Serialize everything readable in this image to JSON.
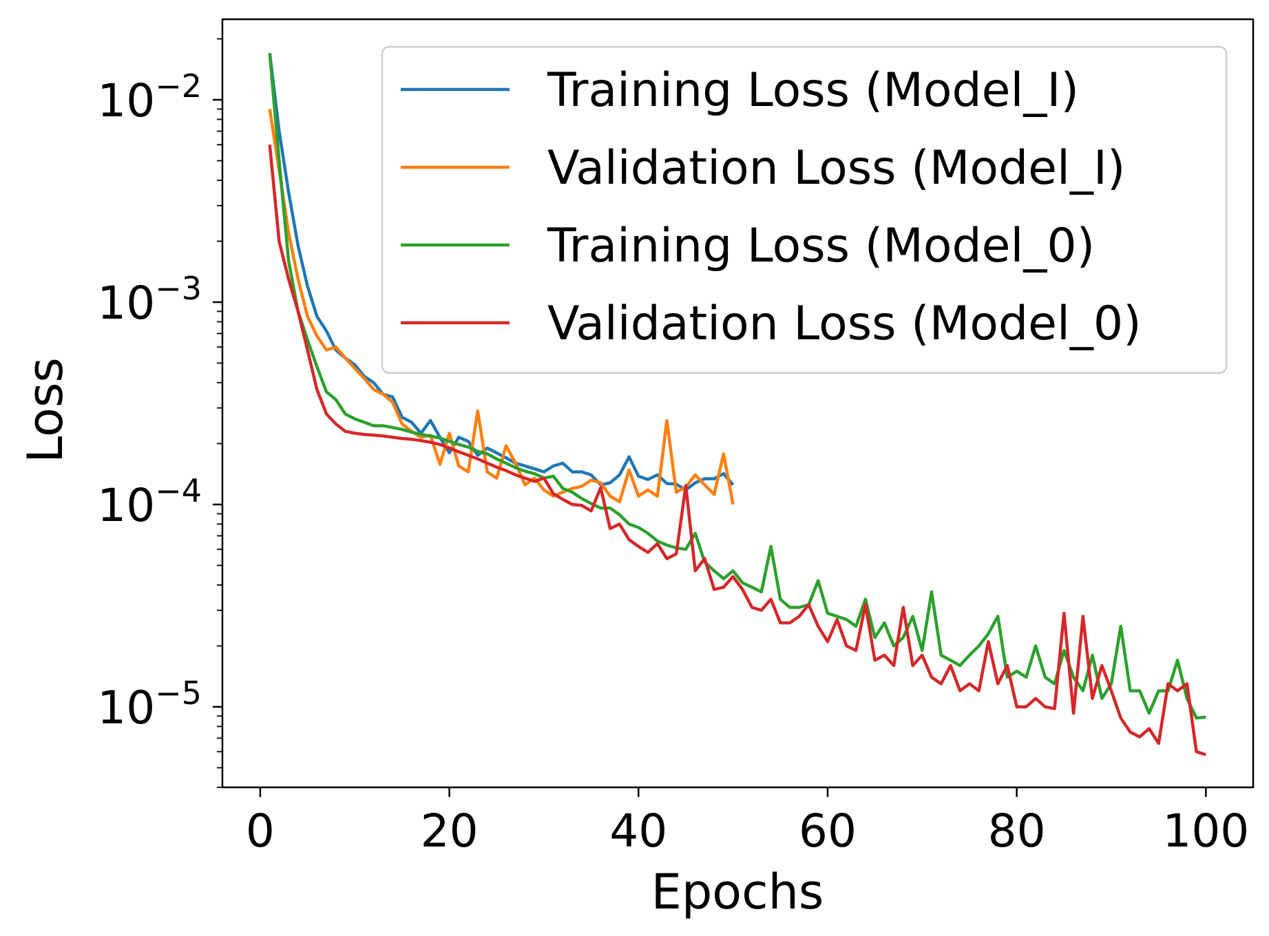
{
  "chart_data": {
    "type": "line",
    "xlabel": "Epochs",
    "ylabel": "Loss",
    "xlim": [
      -4,
      105
    ],
    "ylim": [
      4e-06,
      0.025
    ],
    "yscale": "log",
    "grid": false,
    "legend_position": "top-right",
    "x_ticks": [
      "0",
      "20",
      "40",
      "60",
      "80",
      "100"
    ],
    "y_ticks": [
      {
        "base": "10",
        "exp": "−2"
      },
      {
        "base": "10",
        "exp": "−3"
      },
      {
        "base": "10",
        "exp": "−4"
      },
      {
        "base": "10",
        "exp": "−5"
      }
    ],
    "series": [
      {
        "name": "Training Loss (Model_I)",
        "color": "#1f77b4",
        "x": [
          1,
          2,
          3,
          4,
          5,
          6,
          7,
          8,
          9,
          10,
          11,
          12,
          13,
          14,
          15,
          16,
          17,
          18,
          19,
          20,
          21,
          22,
          23,
          24,
          25,
          26,
          27,
          28,
          29,
          30,
          31,
          32,
          33,
          34,
          35,
          36,
          37,
          38,
          39,
          40,
          41,
          42,
          43,
          44,
          45,
          46,
          47,
          48,
          49,
          50
        ],
        "y": [
          0.017,
          0.007,
          0.0035,
          0.0019,
          0.0012,
          0.00085,
          0.00072,
          0.00058,
          0.00053,
          0.00049,
          0.00043,
          0.0004,
          0.00035,
          0.00034,
          0.00027,
          0.000255,
          0.000225,
          0.00026,
          0.000215,
          0.00018,
          0.000215,
          0.000205,
          0.000175,
          0.00019,
          0.00018,
          0.00017,
          0.00016,
          0.000155,
          0.00015,
          0.000145,
          0.000155,
          0.00016,
          0.000145,
          0.000145,
          0.00014,
          0.000125,
          0.000128,
          0.00014,
          0.000172,
          0.000138,
          0.000133,
          0.00014,
          0.000127,
          0.000126,
          0.000118,
          0.000128,
          0.000134,
          0.000134,
          0.000142,
          0.000125
        ]
      },
      {
        "name": "Validation Loss (Model_I)",
        "color": "#ff7f0e",
        "x": [
          1,
          2,
          3,
          4,
          5,
          6,
          7,
          8,
          9,
          10,
          11,
          12,
          13,
          14,
          15,
          16,
          17,
          18,
          19,
          20,
          21,
          22,
          23,
          24,
          25,
          26,
          27,
          28,
          29,
          30,
          31,
          32,
          33,
          34,
          35,
          36,
          37,
          38,
          39,
          40,
          41,
          42,
          43,
          44,
          45,
          46,
          47,
          48,
          49,
          50
        ],
        "y": [
          0.009,
          0.0045,
          0.0022,
          0.0013,
          0.00085,
          0.00068,
          0.00058,
          0.0006,
          0.00053,
          0.00047,
          0.00042,
          0.00037,
          0.00035,
          0.00032,
          0.00025,
          0.00023,
          0.000215,
          0.00022,
          0.000158,
          0.000225,
          0.000155,
          0.000145,
          0.00029,
          0.000145,
          0.000135,
          0.000195,
          0.00016,
          0.000125,
          0.000135,
          0.000118,
          0.00011,
          0.000115,
          0.00012,
          0.000123,
          0.000132,
          0.000128,
          0.00011,
          0.000103,
          0.000148,
          0.00011,
          0.000118,
          0.00011,
          0.00026,
          0.000115,
          0.000122,
          0.00014,
          0.000125,
          0.000112,
          0.000178,
          0.0001
        ]
      },
      {
        "name": "Training Loss (Model_0)",
        "color": "#2ca02c",
        "x": [
          1,
          2,
          3,
          4,
          5,
          6,
          7,
          8,
          9,
          10,
          11,
          12,
          13,
          14,
          15,
          16,
          17,
          18,
          19,
          20,
          21,
          22,
          23,
          24,
          25,
          26,
          27,
          28,
          29,
          30,
          31,
          32,
          33,
          34,
          35,
          36,
          37,
          38,
          39,
          40,
          41,
          42,
          43,
          44,
          45,
          46,
          47,
          48,
          49,
          50,
          51,
          52,
          53,
          54,
          55,
          56,
          57,
          58,
          59,
          60,
          61,
          62,
          63,
          64,
          65,
          66,
          67,
          68,
          69,
          70,
          71,
          72,
          73,
          74,
          75,
          76,
          77,
          78,
          79,
          80,
          81,
          82,
          83,
          84,
          85,
          86,
          87,
          88,
          89,
          90,
          91,
          92,
          93,
          94,
          95,
          96,
          97,
          98,
          99,
          100
        ],
        "y": [
          0.017,
          0.005,
          0.0016,
          0.0009,
          0.00065,
          0.00048,
          0.00036,
          0.00033,
          0.00028,
          0.000265,
          0.000255,
          0.000245,
          0.000245,
          0.00024,
          0.000235,
          0.000228,
          0.000222,
          0.000218,
          0.000213,
          0.000205,
          0.000198,
          0.000192,
          0.000183,
          0.000178,
          0.000168,
          0.00016,
          0.000152,
          0.000146,
          0.000142,
          0.000135,
          0.000138,
          0.00012,
          0.000115,
          0.000107,
          0.000101,
          9.6e-05,
          9.6e-05,
          8.9e-05,
          8e-05,
          7.7e-05,
          7.2e-05,
          6.6e-05,
          6.3e-05,
          6.1e-05,
          6e-05,
          7.2e-05,
          5.2e-05,
          4.7e-05,
          4.3e-05,
          4.7e-05,
          4.1e-05,
          3.9e-05,
          3.7e-05,
          6.2e-05,
          3.4e-05,
          3.1e-05,
          3.1e-05,
          3.2e-05,
          4.2e-05,
          2.9e-05,
          2.8e-05,
          2.7e-05,
          2.5e-05,
          3.4e-05,
          2.2e-05,
          2.6e-05,
          2e-05,
          2.2e-05,
          2.8e-05,
          1.9e-05,
          3.7e-05,
          1.8e-05,
          1.7e-05,
          1.6e-05,
          1.8e-05,
          2e-05,
          2.3e-05,
          2.8e-05,
          1.4e-05,
          1.5e-05,
          1.4e-05,
          2e-05,
          1.4e-05,
          1.3e-05,
          1.9e-05,
          1.4e-05,
          1.2e-05,
          1.8e-05,
          1.1e-05,
          1.3e-05,
          2.5e-05,
          1.2e-05,
          1.2e-05,
          9.3e-06,
          1.2e-05,
          1.2e-05,
          1.7e-05,
          1.1e-05,
          8.8e-06,
          8.9e-06
        ]
      },
      {
        "name": "Validation Loss (Model_0)",
        "color": "#d62728",
        "x": [
          1,
          2,
          3,
          4,
          5,
          6,
          7,
          8,
          9,
          10,
          11,
          12,
          13,
          14,
          15,
          16,
          17,
          18,
          19,
          20,
          21,
          22,
          23,
          24,
          25,
          26,
          27,
          28,
          29,
          30,
          31,
          32,
          33,
          34,
          35,
          36,
          37,
          38,
          39,
          40,
          41,
          42,
          43,
          44,
          45,
          46,
          47,
          48,
          49,
          50,
          51,
          52,
          53,
          54,
          55,
          56,
          57,
          58,
          59,
          60,
          61,
          62,
          63,
          64,
          65,
          66,
          67,
          68,
          69,
          70,
          71,
          72,
          73,
          74,
          75,
          76,
          77,
          78,
          79,
          80,
          81,
          82,
          83,
          84,
          85,
          86,
          87,
          88,
          89,
          90,
          91,
          92,
          93,
          94,
          95,
          96,
          97,
          98,
          99,
          100
        ],
        "y": [
          0.006,
          0.002,
          0.0013,
          0.0009,
          0.00058,
          0.00037,
          0.00028,
          0.00025,
          0.00023,
          0.000225,
          0.000222,
          0.00022,
          0.000218,
          0.000215,
          0.000212,
          0.00021,
          0.000207,
          0.000203,
          0.000198,
          0.00019,
          0.000182,
          0.000175,
          0.000168,
          0.00016,
          0.000153,
          0.000147,
          0.00014,
          0.000135,
          0.00013,
          0.000135,
          0.000113,
          0.000106,
          0.0001,
          9.9e-05,
          9.3e-05,
          0.000121,
          7.6e-05,
          8e-05,
          6.7e-05,
          6.2e-05,
          5.8e-05,
          6.4e-05,
          5.4e-05,
          5.7e-05,
          0.000124,
          4.7e-05,
          5.4e-05,
          3.8e-05,
          3.9e-05,
          4.4e-05,
          3.8e-05,
          3.1e-05,
          3e-05,
          3.4e-05,
          2.6e-05,
          2.6e-05,
          2.8e-05,
          3.2e-05,
          2.5e-05,
          2.1e-05,
          2.7e-05,
          2e-05,
          1.9e-05,
          3.2e-05,
          1.7e-05,
          1.8e-05,
          1.6e-05,
          3.1e-05,
          1.6e-05,
          1.8e-05,
          1.4e-05,
          1.3e-05,
          1.6e-05,
          1.2e-05,
          1.3e-05,
          1.2e-05,
          2.1e-05,
          1.3e-05,
          1.6e-05,
          1e-05,
          1e-05,
          1.1e-05,
          1e-05,
          9.8e-06,
          2.9e-05,
          9.3e-06,
          2.8e-05,
          1.1e-05,
          1.6e-05,
          1.2e-05,
          8.8e-06,
          7.5e-06,
          7.1e-06,
          7.8e-06,
          6.6e-06,
          1.3e-05,
          1.2e-05,
          1.3e-05,
          6e-06,
          5.8e-06
        ]
      }
    ]
  }
}
